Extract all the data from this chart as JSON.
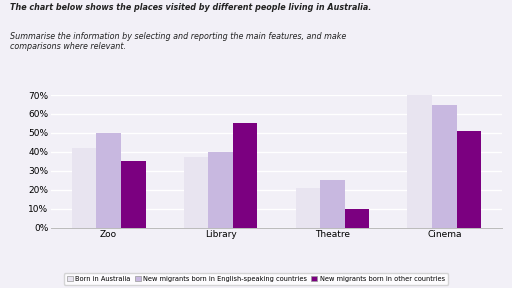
{
  "categories": [
    "Zoo",
    "Library",
    "Theatre",
    "Cinema"
  ],
  "series": {
    "Born in Australia": [
      42,
      37,
      21,
      70
    ],
    "New migrants born in English-speaking countries": [
      50,
      40,
      25,
      65
    ],
    "New migrants born in other countries": [
      35,
      55,
      10,
      51
    ]
  },
  "colors": {
    "Born in Australia": "#e8e4f0",
    "New migrants born in English-speaking countries": "#c8b8e0",
    "New migrants born in other countries": "#7b0080"
  },
  "ylim": [
    0,
    70
  ],
  "yticks": [
    0,
    10,
    20,
    30,
    40,
    50,
    60,
    70
  ],
  "title_line1": "The chart below shows the places visited by different people living in Australia.",
  "title_line2": "Summarise the information by selecting and reporting the main features, and make\ncomparisons where relevant.",
  "background_color": "#f2f0f7",
  "plot_background": "#f2f0f7",
  "grid_color": "#ffffff",
  "bar_width": 0.22,
  "legend_labels": [
    "Born in Australia",
    "New migrants born in English-speaking countries",
    "New migrants born in other countries"
  ]
}
